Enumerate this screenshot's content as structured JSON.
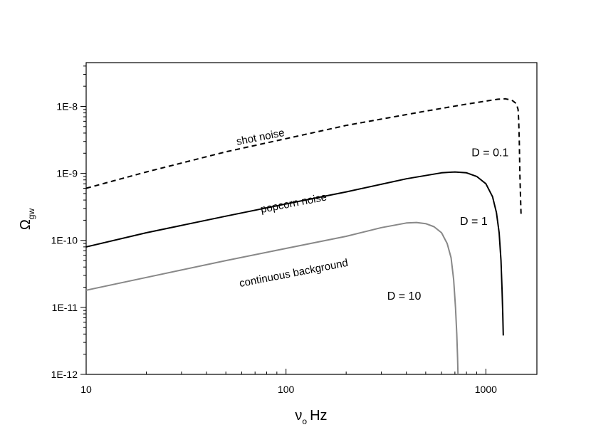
{
  "chart_data": {
    "type": "line",
    "title": "",
    "xlabel": {
      "symbol": "ν",
      "subscript": "o",
      "unit": "Hz"
    },
    "ylabel": {
      "symbol": "Ω",
      "subscript": "gw"
    },
    "x_scale": "log",
    "y_scale": "log",
    "xlim": [
      10,
      1800
    ],
    "ylim": [
      1e-12,
      4.5e-08
    ],
    "grid": false,
    "x_ticks": [
      {
        "value": 10,
        "label": "10"
      },
      {
        "value": 100,
        "label": "100"
      },
      {
        "value": 1000,
        "label": "1000"
      }
    ],
    "y_ticks": [
      {
        "value": 1e-12,
        "label": "1E-12"
      },
      {
        "value": 1e-11,
        "label": "1E-11"
      },
      {
        "value": 1e-10,
        "label": "1E-10"
      },
      {
        "value": 1e-09,
        "label": "1E-9"
      },
      {
        "value": 1e-08,
        "label": "1E-8"
      }
    ],
    "series": [
      {
        "name": "D = 0.1",
        "region_label": "shot noise",
        "color": "#000000",
        "dash": "dashed",
        "x": [
          10,
          20,
          50,
          100,
          200,
          500,
          800,
          1000,
          1150,
          1250,
          1350,
          1420,
          1450,
          1460,
          1470,
          1480,
          1490,
          1500
        ],
        "y": [
          6e-10,
          1.05e-09,
          2.1e-09,
          3.3e-09,
          5.2e-09,
          8.5e-09,
          1.08e-08,
          1.2e-08,
          1.28e-08,
          1.3e-08,
          1.24e-08,
          1.1e-08,
          9e-09,
          6e-09,
          3e-09,
          1e-09,
          4.5e-10,
          2.4e-10
        ]
      },
      {
        "name": "D = 1",
        "region_label": "popcorn noise",
        "color": "#000000",
        "dash": "solid",
        "x": [
          10,
          20,
          50,
          100,
          200,
          400,
          600,
          700,
          800,
          900,
          1000,
          1080,
          1130,
          1165,
          1190,
          1205,
          1215,
          1222
        ],
        "y": [
          8e-11,
          1.3e-10,
          2.3e-10,
          3.5e-10,
          5.3e-10,
          8.3e-10,
          1.02e-09,
          1.05e-09,
          1.02e-09,
          9e-10,
          7e-10,
          4.5e-10,
          2.6e-10,
          1.3e-10,
          5e-11,
          1.8e-11,
          8e-12,
          3.8e-12
        ]
      },
      {
        "name": "D = 10",
        "region_label": "continuous background",
        "color": "#888888",
        "dash": "solid",
        "x": [
          10,
          20,
          50,
          100,
          200,
          300,
          400,
          450,
          500,
          550,
          600,
          640,
          670,
          690,
          705,
          715,
          722,
          725
        ],
        "y": [
          1.8e-11,
          2.8e-11,
          5e-11,
          7.6e-11,
          1.15e-10,
          1.55e-10,
          1.82e-10,
          1.85e-10,
          1.78e-10,
          1.6e-10,
          1.3e-10,
          9e-11,
          5.5e-11,
          2.6e-11,
          1e-11,
          4e-12,
          1.8e-12,
          1e-12
        ]
      }
    ],
    "annotations": [
      {
        "id": "shot",
        "text": "shot noise",
        "x": 75,
        "y": 3.1e-09,
        "rotate": -11
      },
      {
        "id": "popcorn",
        "text": "popcorn noise",
        "x": 110,
        "y": 3.2e-10,
        "rotate": -11
      },
      {
        "id": "continuous",
        "text": "continuous background",
        "x": 110,
        "y": 2.9e-11,
        "rotate": -11
      },
      {
        "id": "d01",
        "text": "D = 0.1",
        "x": 1050,
        "y": 1.8e-09,
        "rotate": 0
      },
      {
        "id": "d1",
        "text": "D = 1",
        "x": 870,
        "y": 1.7e-10,
        "rotate": 0
      },
      {
        "id": "d10",
        "text": "D = 10",
        "x": 390,
        "y": 1.3e-11,
        "rotate": 0
      }
    ]
  }
}
